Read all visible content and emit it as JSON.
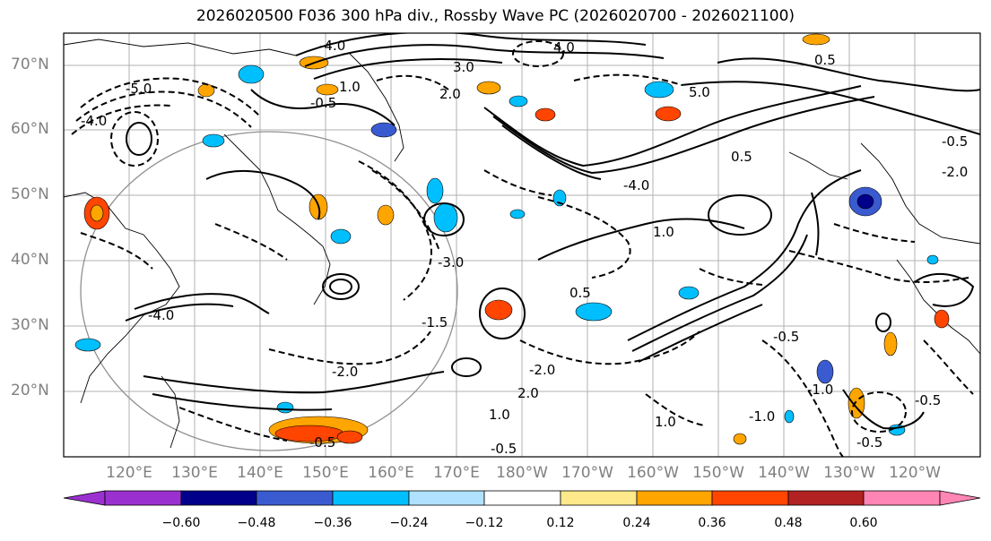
{
  "title": "2026020500 F036 300 hPa div., Rossby Wave PC (2026020700 - 2026021100)",
  "map": {
    "lat_labels": [
      "70°N",
      "60°N",
      "50°N",
      "40°N",
      "30°N",
      "20°N"
    ],
    "lon_labels": [
      "120°E",
      "130°E",
      "140°E",
      "150°E",
      "160°E",
      "170°E",
      "180°W",
      "170°W",
      "160°W",
      "150°W",
      "140°W",
      "130°W",
      "120°W"
    ],
    "contour_labels": [
      "-4.0",
      "-5.0",
      "-4.0",
      "-2.0",
      "-0.5",
      "-1.0",
      "-0.5",
      "-2.0",
      "-0.5",
      "-0.5",
      "-0.5",
      "1.0",
      "1.0",
      "0.5",
      "1.0",
      "2.0",
      "3.0",
      "-3.0",
      "-4.0",
      "4.0",
      "5.0",
      "-0.5",
      "-4.0",
      "1.0",
      "-1.0",
      "2.0",
      "-2.0",
      "0.5",
      "0.5",
      "-1.5",
      "-0.5"
    ]
  },
  "colorbar": {
    "ticks": [
      "−0.60",
      "−0.48",
      "−0.36",
      "−0.24",
      "−0.12",
      "0.12",
      "0.24",
      "0.36",
      "0.48",
      "0.60"
    ],
    "colors": [
      "#9b30d0",
      "#00008b",
      "#3a5bd0",
      "#00bfff",
      "#b0e2ff",
      "#ffffff",
      "#ffe98a",
      "#ffa500",
      "#ff4500",
      "#b22222",
      "#ff85b5"
    ]
  }
}
